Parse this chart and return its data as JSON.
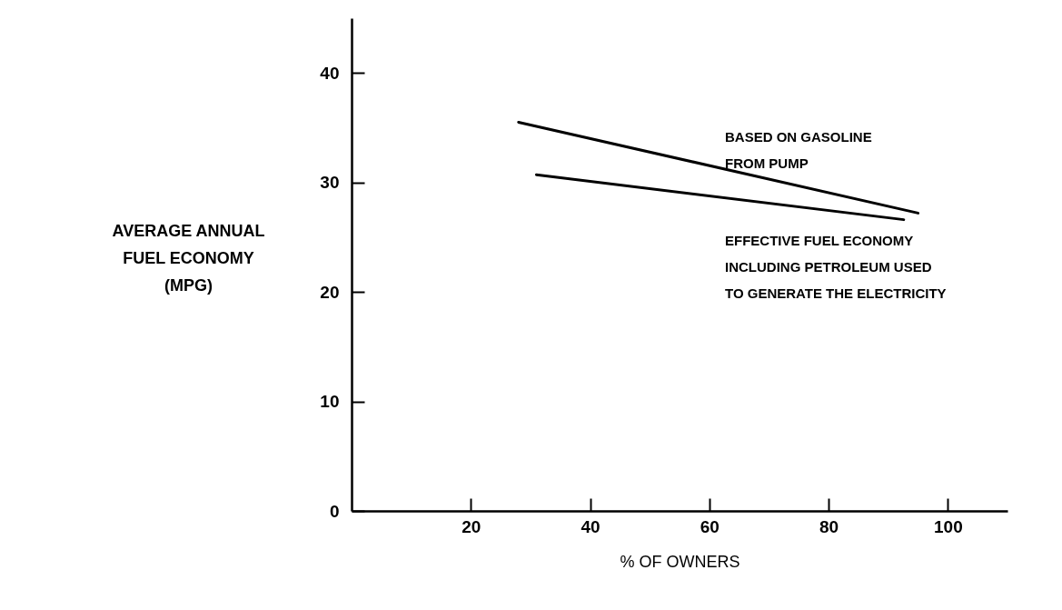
{
  "chart_data": {
    "type": "line",
    "xlabel": "% OF OWNERS",
    "ylabel": "AVERAGE ANNUAL\nFUEL ECONOMY\n(MPG)",
    "series": [
      {
        "color": "#000000",
        "x": [
          28,
          95
        ],
        "values": [
          35.5,
          27.2
        ]
      },
      {
        "color": "#000000",
        "x": [
          31,
          92.6
        ],
        "values": [
          30.7,
          26.6
        ]
      }
    ],
    "xlim": [
      0,
      110
    ],
    "xticks": [
      20,
      40,
      60,
      80,
      100
    ],
    "ylim": [
      0,
      45
    ],
    "yticks": [
      0,
      10,
      20,
      30,
      40
    ],
    "annotations": [
      "BASED ON GASOLINE\nFROM PUMP",
      "EFFECTIVE FUEL ECONOMY\nINCLUDING PETROLEUM USED\nTO GENERATE THE ELECTRICITY"
    ]
  }
}
